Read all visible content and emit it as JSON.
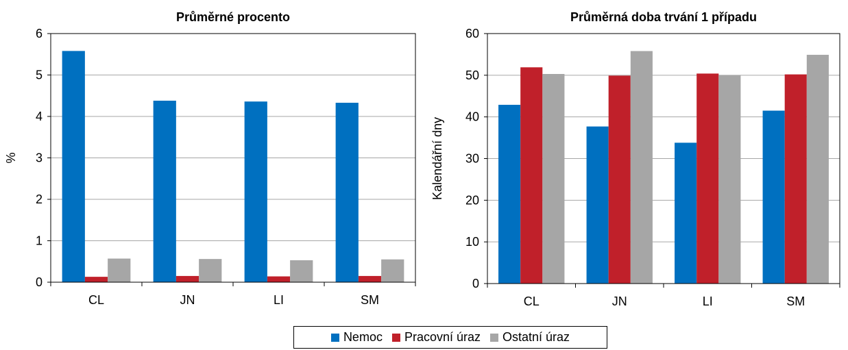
{
  "chart_data": [
    {
      "type": "bar",
      "title": "Průměrné procento",
      "xlabel": "",
      "ylabel": "%",
      "categories": [
        "CL",
        "JN",
        "LI",
        "SM"
      ],
      "ylim": [
        0,
        6
      ],
      "yticks": [
        0,
        1,
        2,
        3,
        4,
        5,
        6
      ],
      "grid": true,
      "series": [
        {
          "name": "Nemoc",
          "color": "#0070C0",
          "values": [
            5.58,
            4.38,
            4.36,
            4.33
          ]
        },
        {
          "name": "Pracovní úraz",
          "color": "#C0202A",
          "values": [
            0.13,
            0.15,
            0.14,
            0.15
          ]
        },
        {
          "name": "Ostatní úraz",
          "color": "#A6A6A6",
          "values": [
            0.57,
            0.56,
            0.53,
            0.55
          ]
        }
      ]
    },
    {
      "type": "bar",
      "title": "Průměrná doba trvání 1 případu",
      "xlabel": "",
      "ylabel": "Kalendářní dny",
      "categories": [
        "CL",
        "JN",
        "LI",
        "SM"
      ],
      "ylim": [
        0,
        60
      ],
      "yticks": [
        0,
        10,
        20,
        30,
        40,
        50,
        60
      ],
      "grid": true,
      "series": [
        {
          "name": "Nemoc",
          "color": "#0070C0",
          "values": [
            42.9,
            37.7,
            33.8,
            41.5
          ]
        },
        {
          "name": "Pracovní úraz",
          "color": "#C0202A",
          "values": [
            51.9,
            49.9,
            50.4,
            50.2
          ]
        },
        {
          "name": "Ostatní úraz",
          "color": "#A6A6A6",
          "values": [
            50.3,
            55.8,
            50.0,
            54.9
          ]
        }
      ]
    }
  ],
  "legend": {
    "position": "bottom-center",
    "items": [
      {
        "label": "Nemoc",
        "color": "#0070C0"
      },
      {
        "label": "Pracovní úraz",
        "color": "#C0202A"
      },
      {
        "label": "Ostatní úraz",
        "color": "#A6A6A6"
      }
    ]
  }
}
